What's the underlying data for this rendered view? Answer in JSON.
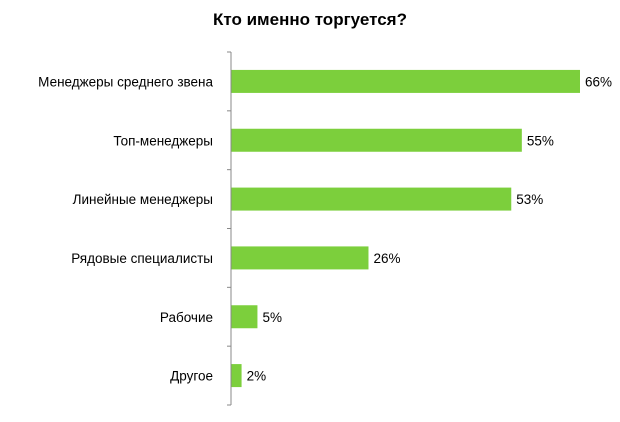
{
  "chart_data": {
    "type": "bar",
    "orientation": "horizontal",
    "title": "Кто именно торгуется?",
    "categories": [
      "Менеджеры среднего звена",
      "Топ-менеджеры",
      "Линейные менеджеры",
      "Рядовые специалисты",
      "Рабочие",
      "Другое"
    ],
    "values": [
      66,
      55,
      53,
      26,
      5,
      2
    ],
    "value_labels": [
      "66%",
      "55%",
      "53%",
      "26%",
      "5%",
      "2%"
    ],
    "unit": "%",
    "xlim": [
      0,
      66
    ],
    "grid": false,
    "legend": "none",
    "bar_color": "#7ccf3c",
    "axis_color": "#888888"
  }
}
